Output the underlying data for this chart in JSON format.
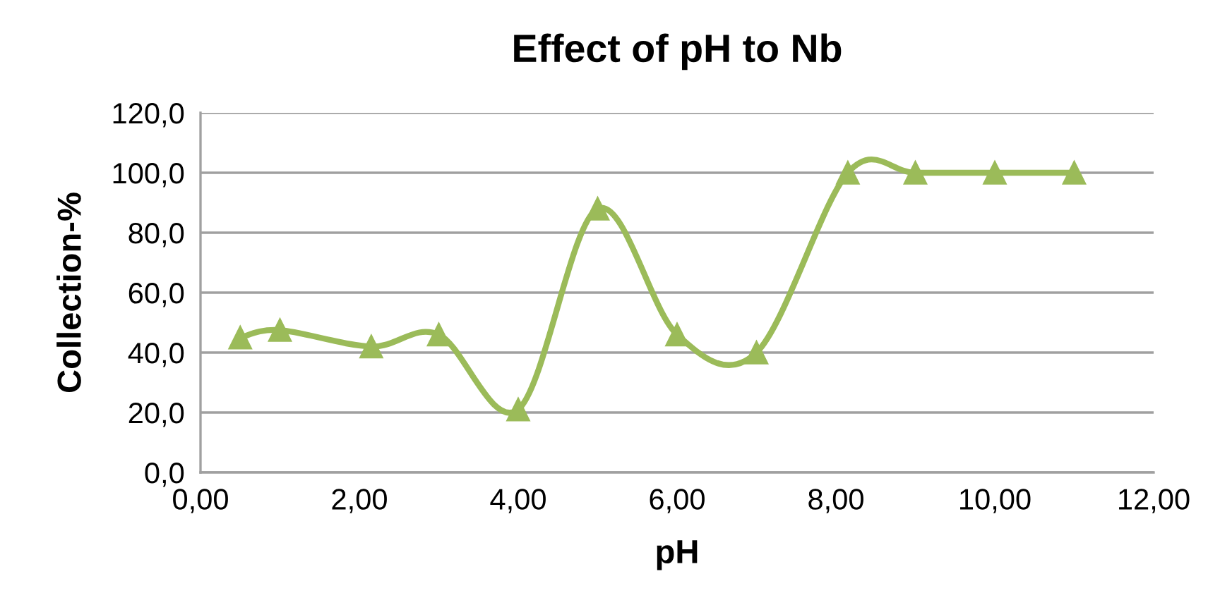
{
  "chart_data": {
    "type": "line",
    "title": "Effect of pH to Nb",
    "xlabel": "pH",
    "ylabel": "Collection-%",
    "x": [
      0.5,
      1.0,
      2.15,
      3.0,
      4.0,
      5.0,
      6.0,
      7.0,
      8.15,
      9.0,
      10.0,
      11.0
    ],
    "series": [
      {
        "color": "#9bbb59",
        "values": [
          45,
          47.5,
          42,
          46,
          21,
          88,
          46,
          40,
          100,
          100,
          100,
          100
        ]
      }
    ],
    "xlim": [
      0,
      12
    ],
    "xticks": [
      {
        "value": 0,
        "label": "0,00"
      },
      {
        "value": 2,
        "label": "2,00"
      },
      {
        "value": 4,
        "label": "4,00"
      },
      {
        "value": 6,
        "label": "6,00"
      },
      {
        "value": 8,
        "label": "8,00"
      },
      {
        "value": 10,
        "label": "10,00"
      },
      {
        "value": 12,
        "label": "12,00"
      }
    ],
    "ylim": [
      0,
      120
    ],
    "yticks": [
      {
        "value": 0,
        "label": "0,0"
      },
      {
        "value": 20,
        "label": "20,0"
      },
      {
        "value": 40,
        "label": "40,0"
      },
      {
        "value": 60,
        "label": "60,0"
      },
      {
        "value": 80,
        "label": "80,0"
      },
      {
        "value": 100,
        "label": "100,0"
      },
      {
        "value": 120,
        "label": "120,0"
      }
    ],
    "grid": "y",
    "marker": "triangle",
    "line_style": "solid",
    "legend": false
  }
}
